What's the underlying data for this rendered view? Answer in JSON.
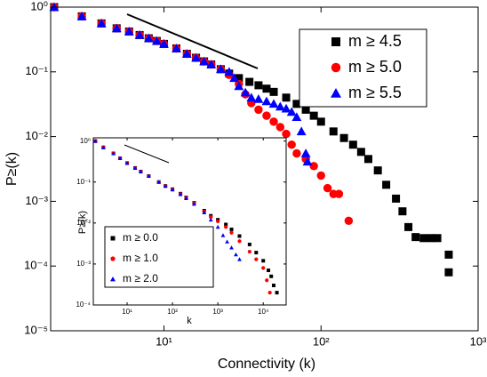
{
  "chart_data": [
    {
      "type": "scatter",
      "xlabel": "Connectivity (k)",
      "ylabel": "P≥(k)",
      "log_x": true,
      "log_y": true,
      "xlim": [
        1.9,
        1000
      ],
      "ylim": [
        1e-05,
        1
      ],
      "xticks": [
        {
          "value": 10,
          "label": "10¹"
        },
        {
          "value": 100,
          "label": "10²"
        },
        {
          "value": 1000,
          "label": "10³"
        }
      ],
      "yticks": [
        {
          "value": 1e-05,
          "label": "10⁻⁵"
        },
        {
          "value": 0.0001,
          "label": "10⁻⁴"
        },
        {
          "value": 0.001,
          "label": "10⁻³"
        },
        {
          "value": 0.01,
          "label": "10⁻²"
        },
        {
          "value": 0.1,
          "label": "10⁻¹"
        },
        {
          "value": 1,
          "label": "10⁰"
        }
      ],
      "legend": "upper right",
      "series": [
        {
          "name": "m ≥ 4.5",
          "color": "#000000",
          "marker": "square",
          "x": [
            2,
            3,
            4,
            5,
            6,
            7,
            8,
            9,
            10,
            12,
            14,
            16,
            18,
            20,
            23,
            26,
            30,
            35,
            40,
            45,
            50,
            60,
            70,
            80,
            90,
            100,
            120,
            140,
            160,
            180,
            200,
            230,
            260,
            300,
            330,
            360,
            400,
            450,
            500,
            550,
            650,
            650
          ],
          "values": [
            1,
            0.72,
            0.56,
            0.47,
            0.42,
            0.37,
            0.33,
            0.3,
            0.27,
            0.23,
            0.19,
            0.165,
            0.145,
            0.13,
            0.11,
            0.094,
            0.08,
            0.07,
            0.062,
            0.055,
            0.049,
            0.04,
            0.032,
            0.026,
            0.021,
            0.017,
            0.012,
            0.0095,
            0.0075,
            0.0058,
            0.0045,
            0.003,
            0.0018,
            0.0011,
            0.0007,
            0.0004,
            0.00028,
            0.00027,
            0.00027,
            0.00027,
            0.00015,
            8e-05
          ]
        },
        {
          "name": "m ≥ 5.0",
          "color": "#ff0000",
          "marker": "circle",
          "x": [
            2,
            3,
            4,
            5,
            6,
            7,
            8,
            9,
            10,
            12,
            14,
            16,
            18,
            20,
            23,
            26,
            30,
            33,
            36,
            40,
            45,
            50,
            55,
            60,
            65,
            70,
            80,
            90,
            100,
            110,
            120,
            130,
            150
          ],
          "values": [
            1,
            0.72,
            0.56,
            0.47,
            0.42,
            0.37,
            0.33,
            0.3,
            0.27,
            0.23,
            0.19,
            0.165,
            0.145,
            0.13,
            0.11,
            0.09,
            0.065,
            0.045,
            0.033,
            0.026,
            0.021,
            0.017,
            0.014,
            0.011,
            0.0075,
            0.0055,
            0.0045,
            0.0035,
            0.0025,
            0.0016,
            0.0013,
            0.0013,
            0.0005
          ]
        },
        {
          "name": "m ≥ 5.5",
          "color": "#0000ff",
          "marker": "triangle",
          "x": [
            2,
            3,
            4,
            5,
            6,
            7,
            8,
            9,
            10,
            12,
            14,
            16,
            18,
            20,
            23,
            26,
            28,
            30,
            33,
            36,
            40,
            45,
            50,
            55,
            60,
            65,
            70,
            75,
            80,
            82
          ],
          "values": [
            1,
            0.72,
            0.56,
            0.47,
            0.42,
            0.37,
            0.33,
            0.3,
            0.27,
            0.23,
            0.19,
            0.165,
            0.145,
            0.13,
            0.11,
            0.1,
            0.08,
            0.06,
            0.048,
            0.04,
            0.038,
            0.035,
            0.032,
            0.029,
            0.027,
            0.024,
            0.02,
            0.012,
            0.0055,
            0.0041
          ]
        }
      ]
    },
    {
      "type": "scatter",
      "xlabel": "k",
      "ylabel": "P≥(k)",
      "log_x": true,
      "log_y": true,
      "xlim": [
        1.8,
        32000
      ],
      "ylim": [
        0.0001,
        1.2
      ],
      "xticks": [
        {
          "value": 10,
          "label": "10¹"
        },
        {
          "value": 100,
          "label": "10²"
        },
        {
          "value": 1000,
          "label": "10³"
        },
        {
          "value": 10000,
          "label": "10⁴"
        }
      ],
      "yticks": [
        {
          "value": 0.0001,
          "label": "10⁻⁴"
        },
        {
          "value": 0.001,
          "label": "10⁻³"
        },
        {
          "value": 0.01,
          "label": "10⁻²"
        },
        {
          "value": 0.1,
          "label": "10⁻¹"
        },
        {
          "value": 1,
          "label": "10⁰"
        }
      ],
      "legend": "lower left",
      "series": [
        {
          "name": "m ≥ 0.0",
          "color": "#000000",
          "marker": "square",
          "x": [
            2,
            3,
            5,
            7,
            10,
            15,
            20,
            30,
            50,
            70,
            100,
            150,
            200,
            300,
            500,
            700,
            1000,
            1500,
            2000,
            3000,
            5000,
            7000,
            10000,
            13000,
            15000,
            17000,
            20000
          ],
          "values": [
            1,
            0.7,
            0.5,
            0.38,
            0.29,
            0.22,
            0.18,
            0.14,
            0.1,
            0.08,
            0.067,
            0.052,
            0.042,
            0.031,
            0.02,
            0.015,
            0.012,
            0.0092,
            0.007,
            0.0048,
            0.003,
            0.0019,
            0.0012,
            0.0007,
            0.0005,
            0.0003,
            0.0002
          ]
        },
        {
          "name": "m ≥ 1.0",
          "color": "#ff0000",
          "marker": "circle",
          "x": [
            2,
            3,
            5,
            7,
            10,
            15,
            20,
            30,
            50,
            70,
            100,
            150,
            200,
            300,
            500,
            700,
            1000,
            1500,
            2000,
            3000,
            5000,
            7000,
            10000,
            12000,
            14000
          ],
          "values": [
            1,
            0.7,
            0.5,
            0.38,
            0.29,
            0.22,
            0.18,
            0.14,
            0.1,
            0.08,
            0.066,
            0.051,
            0.041,
            0.03,
            0.019,
            0.014,
            0.011,
            0.008,
            0.0058,
            0.0036,
            0.002,
            0.0013,
            0.0008,
            0.0004,
            0.0002
          ]
        },
        {
          "name": "m ≥ 2.0",
          "color": "#0000ff",
          "marker": "triangle",
          "x": [
            2,
            3,
            5,
            7,
            10,
            15,
            20,
            30,
            50,
            70,
            100,
            150,
            200,
            300,
            500,
            700,
            1000,
            1300,
            1600,
            2000,
            2500,
            3000
          ],
          "values": [
            1,
            0.7,
            0.5,
            0.38,
            0.29,
            0.22,
            0.18,
            0.14,
            0.1,
            0.08,
            0.065,
            0.05,
            0.04,
            0.029,
            0.018,
            0.012,
            0.008,
            0.005,
            0.0035,
            0.0025,
            0.0017,
            0.0013
          ]
        }
      ]
    }
  ]
}
